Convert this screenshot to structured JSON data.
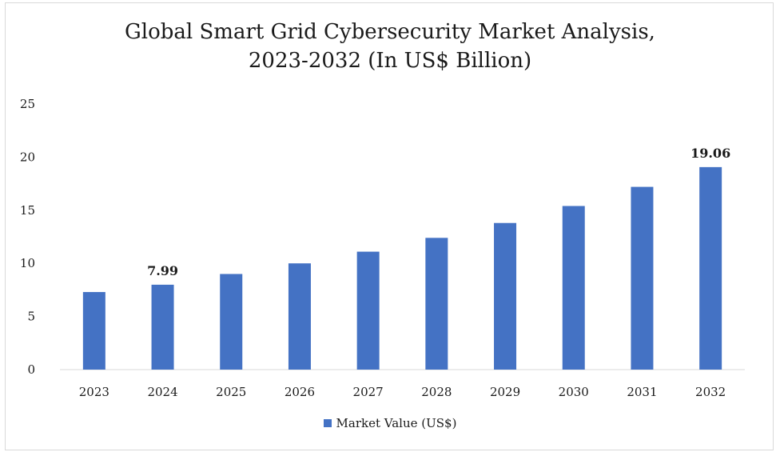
{
  "chart_data": {
    "type": "bar",
    "title_lines": [
      "Global Smart Grid Cybersecurity Market Analysis,",
      "2023-2032 (In US$ Billion)"
    ],
    "categories": [
      "2023",
      "2024",
      "2025",
      "2026",
      "2027",
      "2028",
      "2029",
      "2030",
      "2031",
      "2032"
    ],
    "series": [
      {
        "name": "Market Value (US$)",
        "values": [
          7.3,
          7.99,
          9.0,
          10.0,
          11.1,
          12.4,
          13.8,
          15.4,
          17.2,
          19.06
        ],
        "data_labels": [
          null,
          "7.99",
          null,
          null,
          null,
          null,
          null,
          null,
          null,
          "19.06"
        ]
      }
    ],
    "yticks": [
      "0",
      "5",
      "10",
      "15",
      "20",
      "25"
    ],
    "ylim": [
      0,
      25
    ],
    "xlabel": "",
    "ylabel": "",
    "grid": false,
    "legend_position": "bottom",
    "colors": {
      "bar": "#4472c4",
      "axis": "#d9d9d9"
    }
  }
}
